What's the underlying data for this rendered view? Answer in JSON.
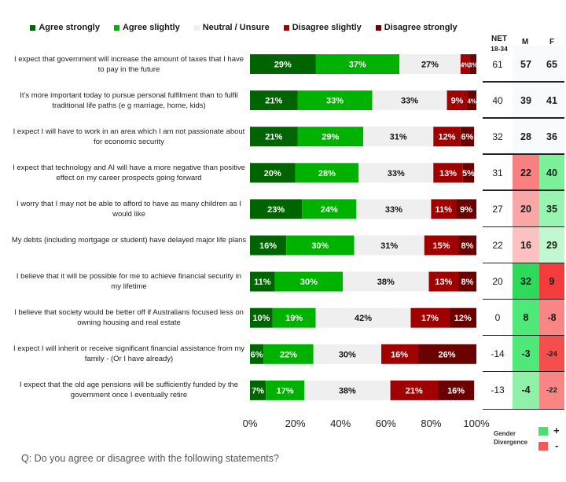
{
  "chart_data": {
    "type": "bar",
    "orientation": "horizontal",
    "stacked": true,
    "title": "",
    "question": "Q: Do you agree or disagree with the following statements?",
    "legend": [
      {
        "name": "Agree strongly",
        "color": "#006400"
      },
      {
        "name": "Agree slightly",
        "color": "#00b200"
      },
      {
        "name": "Neutral / Unsure",
        "color": "#efefef"
      },
      {
        "name": "Disagree slightly",
        "color": "#a00000"
      },
      {
        "name": "Disagree strongly",
        "color": "#6b0000"
      }
    ],
    "legend_position": "top",
    "xlim": [
      0,
      100
    ],
    "x_ticks": [
      "0%",
      "20%",
      "40%",
      "60%",
      "80%",
      "100%"
    ],
    "categories": [
      "I expect that government will increase the amount of taxes that I have to pay in the future",
      "It’s more important today to pursue personal fulfilment than to fulfil traditional life paths (e g  marriage, home, kids)",
      "I expect I will have to work in an area which I am not passionate about for economic security",
      "I expect that technology and AI will have a more negative than positive effect on my career prospects going forward",
      "I worry that I may not be able to afford to have as many children as I would like",
      "My debts (including mortgage or student) have delayed major life plans",
      "I believe that it will be possible for me to achieve financial security in my lifetime",
      "I believe that society would be better off if Australians focused less on owning housing and real estate",
      "I expect I will inherit or receive significant financial assistance from my family - (Or I have already)",
      "I expect that the old age pensions will be sufficiently funded by the government once I eventually retire"
    ],
    "series": [
      {
        "name": "Agree strongly",
        "values": [
          29,
          21,
          21,
          20,
          23,
          16,
          11,
          10,
          6,
          7
        ]
      },
      {
        "name": "Agree slightly",
        "values": [
          37,
          33,
          29,
          28,
          24,
          30,
          30,
          19,
          22,
          17
        ]
      },
      {
        "name": "Neutral / Unsure",
        "values": [
          27,
          33,
          31,
          33,
          33,
          31,
          38,
          42,
          30,
          38
        ]
      },
      {
        "name": "Disagree slightly",
        "values": [
          4,
          9,
          12,
          13,
          11,
          15,
          13,
          17,
          16,
          21
        ]
      },
      {
        "name": "Disagree strongly",
        "values": [
          3,
          4,
          6,
          5,
          9,
          8,
          8,
          12,
          26,
          16
        ]
      }
    ],
    "table": {
      "headers": [
        "NET\n18-34",
        "M",
        "F"
      ],
      "net": [
        61,
        40,
        32,
        31,
        27,
        22,
        20,
        0,
        -14,
        -13
      ],
      "male": [
        57,
        39,
        28,
        22,
        20,
        16,
        32,
        8,
        -3,
        -4
      ],
      "female": [
        65,
        41,
        36,
        40,
        35,
        29,
        9,
        -8,
        -24,
        -22
      ],
      "male_divergence": [
        null,
        null,
        null,
        "-",
        "-",
        "-",
        "+",
        "+",
        "+",
        "+"
      ],
      "female_divergence": [
        null,
        null,
        null,
        "+",
        "+",
        "+",
        "-",
        "-",
        "-",
        "-"
      ]
    },
    "divergence_legend": {
      "label": "Gender Divergence",
      "items": [
        {
          "sign": "+",
          "color": "#44e36c"
        },
        {
          "sign": "-",
          "color": "#f55a5a"
        }
      ]
    }
  },
  "cell_colors": {
    "male": [
      null,
      null,
      null,
      "#f98080",
      "#fba6a6",
      "#fcc2c2",
      "#2fd95b",
      "#4fe97a",
      "#4fe97a",
      "#8ff0a7"
    ],
    "female": [
      null,
      null,
      null,
      "#7cf19a",
      "#98f4b1",
      "#c1f8d0",
      "#f43c3c",
      "#f98585",
      "#f64d4d",
      "#f98585"
    ]
  }
}
